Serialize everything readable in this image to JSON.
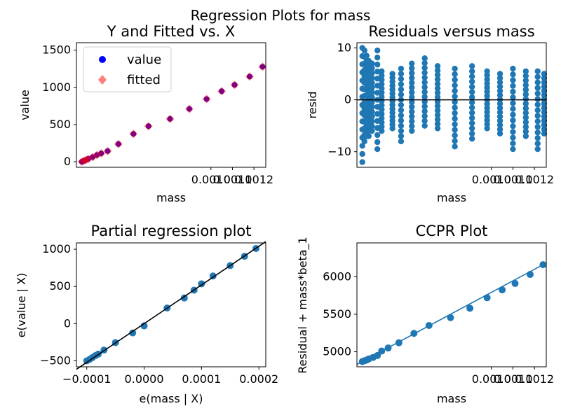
{
  "figure": {
    "suptitle": "Regression Plots for mass"
  },
  "chart_data": [
    {
      "type": "scatter",
      "title": "Y and Fitted vs. X",
      "xlabel": "mass",
      "ylabel": "value",
      "xlim": [
        0.000375,
        0.001255
      ],
      "ylim": [
        -75,
        1600
      ],
      "xticks": [
        0.001,
        0.0011,
        0.0012
      ],
      "xtick_labels": [
        "0.0010",
        "0.0011",
        "0.0012"
      ],
      "yticks": [
        0,
        500,
        1000,
        1500
      ],
      "ytick_labels": [
        "0",
        "500",
        "1000",
        "1500"
      ],
      "legend": {
        "placement": "top-left",
        "entries": [
          "value",
          "fitted"
        ]
      },
      "series": [
        {
          "name": "value",
          "color": "#0000ff",
          "marker": "circle",
          "x": [
            0.0004,
            0.00041,
            0.00042,
            0.00043,
            0.00045,
            0.00047,
            0.00049,
            0.00052,
            0.00057,
            0.00064,
            0.00071,
            0.00081,
            0.0009,
            0.00098,
            0.00105,
            0.00111,
            0.00118,
            0.00124
          ],
          "y": [
            0,
            12,
            25,
            38,
            62,
            90,
            112,
            143,
            238,
            374,
            478,
            576,
            710,
            843,
            948,
            1033,
            1145,
            1277
          ]
        },
        {
          "name": "fitted",
          "color": "#ff0000",
          "marker": "diamond",
          "x": [
            0.0004,
            0.00041,
            0.00042,
            0.00043,
            0.00045,
            0.00047,
            0.00049,
            0.00052,
            0.00057,
            0.00064,
            0.00071,
            0.00081,
            0.0009,
            0.00098,
            0.00105,
            0.00111,
            0.00118,
            0.00124
          ],
          "y": [
            0,
            12,
            25,
            38,
            62,
            90,
            112,
            143,
            238,
            374,
            478,
            576,
            710,
            843,
            948,
            1033,
            1145,
            1277
          ]
        }
      ]
    },
    {
      "type": "scatter",
      "title": "Residuals versus mass",
      "xlabel": "mass",
      "ylabel": "resid",
      "xlim": [
        0.000375,
        0.001255
      ],
      "ylim": [
        -13,
        11
      ],
      "xticks": [
        0.001,
        0.0011,
        0.0012
      ],
      "xtick_labels": [
        "0.0010",
        "0.0011",
        "0.0012"
      ],
      "yticks": [
        -10,
        0,
        10
      ],
      "ytick_labels": [
        "−10",
        "0",
        "10"
      ],
      "zero_line": 0,
      "color": "#1f77b4",
      "columns": [
        {
          "x": 0.0004,
          "min": -12.0,
          "max": 10.0
        },
        {
          "x": 0.00041,
          "min": -8.0,
          "max": 9.5
        },
        {
          "x": 0.00042,
          "min": -7.0,
          "max": 8.5
        },
        {
          "x": 0.00043,
          "min": -7.0,
          "max": 7.5
        },
        {
          "x": 0.000445,
          "min": -6.0,
          "max": 7.0
        },
        {
          "x": 0.00047,
          "min": -9.5,
          "max": 9.5
        },
        {
          "x": 0.00049,
          "min": -6.0,
          "max": 5.5
        },
        {
          "x": 0.00054,
          "min": -5.5,
          "max": 5.0
        },
        {
          "x": 0.00058,
          "min": -8.0,
          "max": 6.0
        },
        {
          "x": 0.00063,
          "min": -6.0,
          "max": 7.0
        },
        {
          "x": 0.00069,
          "min": -5.0,
          "max": 8.0
        },
        {
          "x": 0.00075,
          "min": -5.5,
          "max": 6.5
        },
        {
          "x": 0.00083,
          "min": -9.0,
          "max": 6.0
        },
        {
          "x": 0.00091,
          "min": -7.5,
          "max": 6.5
        },
        {
          "x": 0.00098,
          "min": -5.5,
          "max": 5.5
        },
        {
          "x": 0.00104,
          "min": -6.5,
          "max": 5.0
        },
        {
          "x": 0.0011,
          "min": -9.5,
          "max": 6.0
        },
        {
          "x": 0.00116,
          "min": -7.0,
          "max": 5.5
        },
        {
          "x": 0.001215,
          "min": -9.5,
          "max": 5.5
        },
        {
          "x": 0.001245,
          "min": -6.5,
          "max": 5.0
        }
      ]
    },
    {
      "type": "scatter",
      "title": "Partial regression plot",
      "xlabel": "e(mass | X)",
      "ylabel": "e(value | X)",
      "xlim": [
        -0.000118,
        0.000212
      ],
      "ylim": [
        -580,
        1085
      ],
      "xticks": [
        -0.0001,
        0.0,
        0.0001,
        0.0002
      ],
      "xtick_labels": [
        "−0.0001",
        "0.0000",
        "0.0001",
        "0.0002"
      ],
      "yticks": [
        -500,
        0,
        500,
        1000
      ],
      "ytick_labels": [
        "−500",
        "0",
        "500",
        "1000"
      ],
      "color": "#1f77b4",
      "fit_line": {
        "slope": 5200000,
        "intercept": 0,
        "color": "#000000"
      },
      "x": [
        -0.0001,
        -9.5e-05,
        -9e-05,
        -8.5e-05,
        -8e-05,
        -7e-05,
        -5e-05,
        -2e-05,
        0.0,
        4e-05,
        7e-05,
        8.7e-05,
        0.0001,
        0.00012,
        0.00015,
        0.000175,
        0.000195
      ],
      "y": [
        -500,
        -480,
        -455,
        -430,
        -410,
        -355,
        -255,
        -125,
        -30,
        210,
        345,
        450,
        535,
        640,
        780,
        905,
        1010
      ]
    },
    {
      "type": "scatter",
      "title": "CCPR Plot",
      "xlabel": "mass",
      "ylabel": "Residual + mass*beta_1",
      "xlim": [
        0.000375,
        0.001255
      ],
      "ylim": [
        4800,
        6450
      ],
      "xticks": [
        0.001,
        0.0011,
        0.0012
      ],
      "xtick_labels": [
        "0.0010",
        "0.0011",
        "0.0012"
      ],
      "yticks": [
        5000,
        5500,
        6000
      ],
      "ytick_labels": [
        "5000",
        "5500",
        "6000"
      ],
      "color": "#1f77b4",
      "fit_line": {
        "color": "#1f77b4"
      },
      "x": [
        0.0004,
        0.00041,
        0.00042,
        0.00043,
        0.00045,
        0.00047,
        0.00049,
        0.00052,
        0.00057,
        0.00064,
        0.00071,
        0.00081,
        0.0009,
        0.00098,
        0.00105,
        0.00111,
        0.00118,
        0.00124
      ],
      "y": [
        4870,
        4880,
        4890,
        4905,
        4925,
        4950,
        5010,
        5050,
        5120,
        5245,
        5350,
        5455,
        5580,
        5720,
        5825,
        5910,
        6030,
        6160
      ]
    }
  ]
}
